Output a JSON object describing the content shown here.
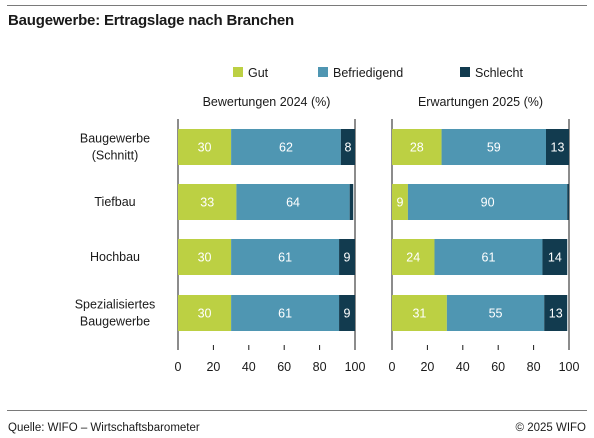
{
  "title": "Baugewerbe: Ertragslage nach Branchen",
  "footer": {
    "source": "Quelle: WIFO – Wirtschaftsbarometer",
    "copyright": "© 2025 WIFO"
  },
  "colors": {
    "Gut": "#bcd043",
    "Befriedigend": "#4f96b2",
    "Schlecht": "#123b4f"
  },
  "chart_data": [
    {
      "type": "bar",
      "orientation": "horizontal",
      "stacked": true,
      "title": "Bewertungen 2024 (%)",
      "categories": [
        [
          "Baugewerbe",
          "(Schnitt)"
        ],
        [
          "Tiefbau"
        ],
        [
          "Hochbau"
        ],
        [
          "Spezialisiertes",
          "Baugewerbe"
        ]
      ],
      "series": [
        {
          "name": "Gut",
          "values": [
            30,
            33,
            30,
            30
          ],
          "labels": [
            "30",
            "33",
            "30",
            "30"
          ]
        },
        {
          "name": "Befriedigend",
          "values": [
            62,
            64,
            61,
            61
          ],
          "labels": [
            "62",
            "64",
            "61",
            "61"
          ]
        },
        {
          "name": "Schlecht",
          "values": [
            8,
            2,
            9,
            9
          ],
          "labels": [
            "8",
            "",
            "9",
            "9"
          ]
        }
      ],
      "xlim": [
        0,
        100
      ],
      "xticks": [
        "0",
        "20",
        "40",
        "60",
        "80",
        "100"
      ],
      "legend": "top"
    },
    {
      "type": "bar",
      "orientation": "horizontal",
      "stacked": true,
      "title": "Erwartungen 2025 (%)",
      "categories": [
        [
          "Baugewerbe",
          "(Schnitt)"
        ],
        [
          "Tiefbau"
        ],
        [
          "Hochbau"
        ],
        [
          "Spezialisiertes",
          "Baugewerbe"
        ]
      ],
      "series": [
        {
          "name": "Gut",
          "values": [
            28,
            9,
            24,
            31
          ],
          "labels": [
            "28",
            "9",
            "24",
            "31"
          ]
        },
        {
          "name": "Befriedigend",
          "values": [
            59,
            90,
            61,
            55
          ],
          "labels": [
            "59",
            "90",
            "61",
            "55"
          ]
        },
        {
          "name": "Schlecht",
          "values": [
            13,
            1,
            14,
            13
          ],
          "labels": [
            "13",
            "",
            "14",
            "13"
          ]
        }
      ],
      "xlim": [
        0,
        100
      ],
      "xticks": [
        "0",
        "20",
        "40",
        "60",
        "80",
        "100"
      ],
      "legend": "top"
    }
  ]
}
